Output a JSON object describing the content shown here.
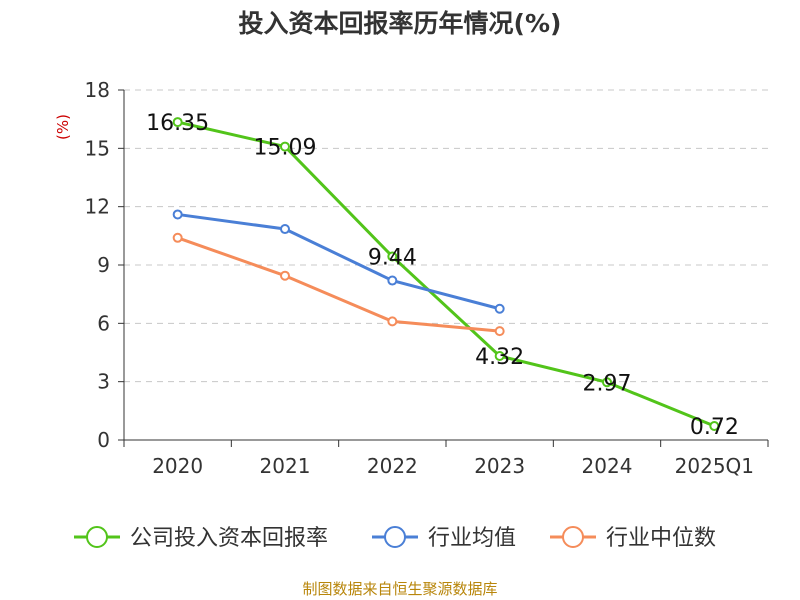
{
  "chart_data": {
    "type": "line",
    "title": "投入资本回报率历年情况(%)",
    "ylabel": "(%)",
    "xlabel": "",
    "categories": [
      "2020",
      "2021",
      "2022",
      "2023",
      "2024",
      "2025Q1"
    ],
    "ylim": [
      0,
      18
    ],
    "yticks": [
      0,
      3,
      6,
      9,
      12,
      15,
      18
    ],
    "grid": true,
    "legend_position": "bottom",
    "series": [
      {
        "name": "公司投入资本回报率",
        "color": "#52c41a",
        "values": [
          16.35,
          15.09,
          9.44,
          4.32,
          2.97,
          0.72
        ],
        "labels": [
          "16.35",
          "15.09",
          "9.44",
          "4.32",
          "2.97",
          "0.72"
        ]
      },
      {
        "name": "行业均值",
        "color": "#4a7fd6",
        "values": [
          11.6,
          10.85,
          8.2,
          6.75,
          null,
          null
        ]
      },
      {
        "name": "行业中位数",
        "color": "#f58c5a",
        "values": [
          10.4,
          8.45,
          6.1,
          5.6,
          null,
          null
        ]
      }
    ],
    "source": "制图数据来自恒生聚源数据库"
  }
}
